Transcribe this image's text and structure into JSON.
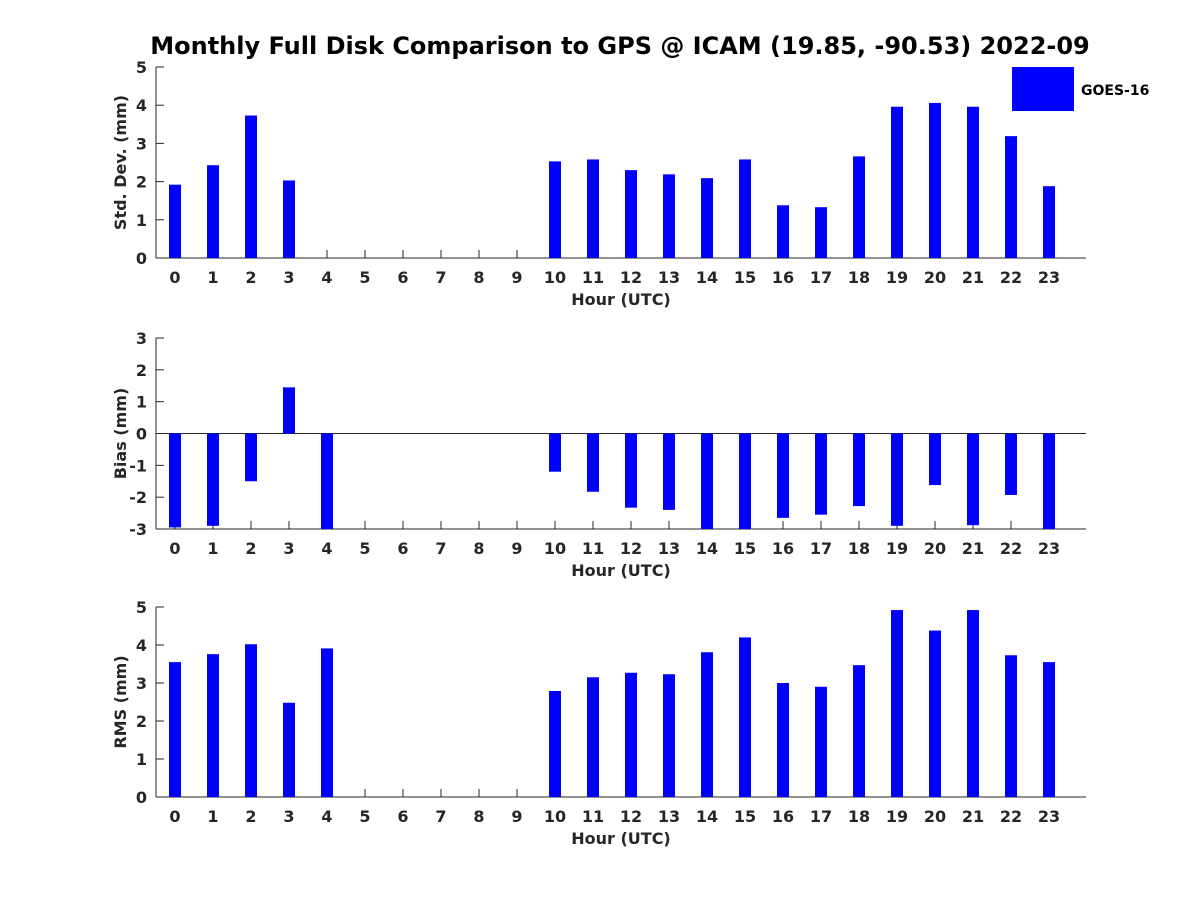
{
  "title": "Monthly Full Disk Comparison to GPS @ ICAM (19.85, -90.53) 2022-09",
  "legend": {
    "label": "GOES-16",
    "color": "#0000ff",
    "placement": "top-right"
  },
  "chart_data": [
    {
      "type": "bar",
      "xlabel": "Hour (UTC)",
      "ylabel": "Std. Dev. (mm)",
      "ylim": [
        0,
        5
      ],
      "yticks": [
        "0",
        "1",
        "2",
        "3",
        "4",
        "5"
      ],
      "categories": [
        "0",
        "1",
        "2",
        "3",
        "4",
        "5",
        "6",
        "7",
        "8",
        "9",
        "10",
        "11",
        "12",
        "13",
        "14",
        "15",
        "16",
        "17",
        "18",
        "19",
        "20",
        "21",
        "22",
        "23"
      ],
      "series": [
        {
          "name": "GOES-16",
          "values": [
            1.92,
            2.43,
            3.73,
            2.03,
            null,
            null,
            null,
            null,
            null,
            null,
            2.53,
            2.58,
            2.3,
            2.19,
            2.09,
            2.58,
            1.38,
            1.33,
            2.66,
            3.96,
            4.06,
            3.96,
            3.19,
            1.88
          ]
        }
      ],
      "grid": false
    },
    {
      "type": "bar",
      "xlabel": "Hour (UTC)",
      "ylabel": "Bias (mm)",
      "ylim": [
        -3,
        3
      ],
      "yticks": [
        "-3",
        "-2",
        "-1",
        "0",
        "1",
        "2",
        "3"
      ],
      "categories": [
        "0",
        "1",
        "2",
        "3",
        "4",
        "5",
        "6",
        "7",
        "8",
        "9",
        "10",
        "11",
        "12",
        "13",
        "14",
        "15",
        "16",
        "17",
        "18",
        "19",
        "20",
        "21",
        "22",
        "23"
      ],
      "series": [
        {
          "name": "GOES-16",
          "values": [
            -2.95,
            -2.9,
            -1.5,
            1.45,
            -3.0,
            null,
            null,
            null,
            null,
            null,
            -1.2,
            -1.83,
            -2.33,
            -2.4,
            -3.0,
            -3.0,
            -2.65,
            -2.55,
            -2.28,
            -2.9,
            -1.62,
            -2.88,
            -1.93,
            -3.0
          ]
        }
      ],
      "grid": false
    },
    {
      "type": "bar",
      "xlabel": "Hour (UTC)",
      "ylabel": "RMS (mm)",
      "ylim": [
        0,
        5
      ],
      "yticks": [
        "0",
        "1",
        "2",
        "3",
        "4",
        "5"
      ],
      "categories": [
        "0",
        "1",
        "2",
        "3",
        "4",
        "5",
        "6",
        "7",
        "8",
        "9",
        "10",
        "11",
        "12",
        "13",
        "14",
        "15",
        "16",
        "17",
        "18",
        "19",
        "20",
        "21",
        "22",
        "23"
      ],
      "series": [
        {
          "name": "GOES-16",
          "values": [
            3.55,
            3.76,
            4.02,
            2.48,
            3.91,
            null,
            null,
            null,
            null,
            null,
            2.79,
            3.15,
            3.27,
            3.23,
            3.81,
            4.2,
            3.0,
            2.9,
            3.47,
            4.92,
            4.38,
            4.92,
            3.73,
            3.55
          ]
        }
      ],
      "grid": false
    }
  ]
}
